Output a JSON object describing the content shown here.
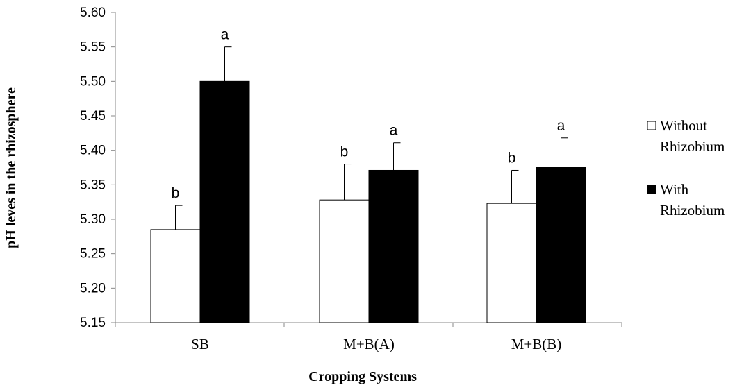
{
  "chart_data": {
    "type": "bar",
    "title": "",
    "xlabel": "Cropping Systems",
    "ylabel": "pH leves in the rhizosphere",
    "ylim": [
      5.15,
      5.6
    ],
    "yticks": [
      "5.15",
      "5.20",
      "5.25",
      "5.30",
      "5.35",
      "5.40",
      "5.45",
      "5.50",
      "5.55",
      "5.60"
    ],
    "grid": false,
    "legend_position": "right",
    "categories": [
      "SB",
      "M+B(A)",
      "M+B(B)"
    ],
    "series": [
      {
        "name": "Without Rhizobium",
        "legend_lines": [
          "Without",
          "Rhizobium"
        ],
        "fill": "#ffffff",
        "values": [
          5.285,
          5.328,
          5.323
        ],
        "error": [
          0.035,
          0.052,
          0.048
        ],
        "letters": [
          "b",
          "b",
          "b"
        ]
      },
      {
        "name": "With Rhizobium",
        "legend_lines": [
          "With",
          "Rhizobium"
        ],
        "fill": "#000000",
        "values": [
          5.5,
          5.371,
          5.376
        ],
        "error": [
          0.05,
          0.04,
          0.042
        ],
        "letters": [
          "a",
          "a",
          "a"
        ]
      }
    ]
  }
}
